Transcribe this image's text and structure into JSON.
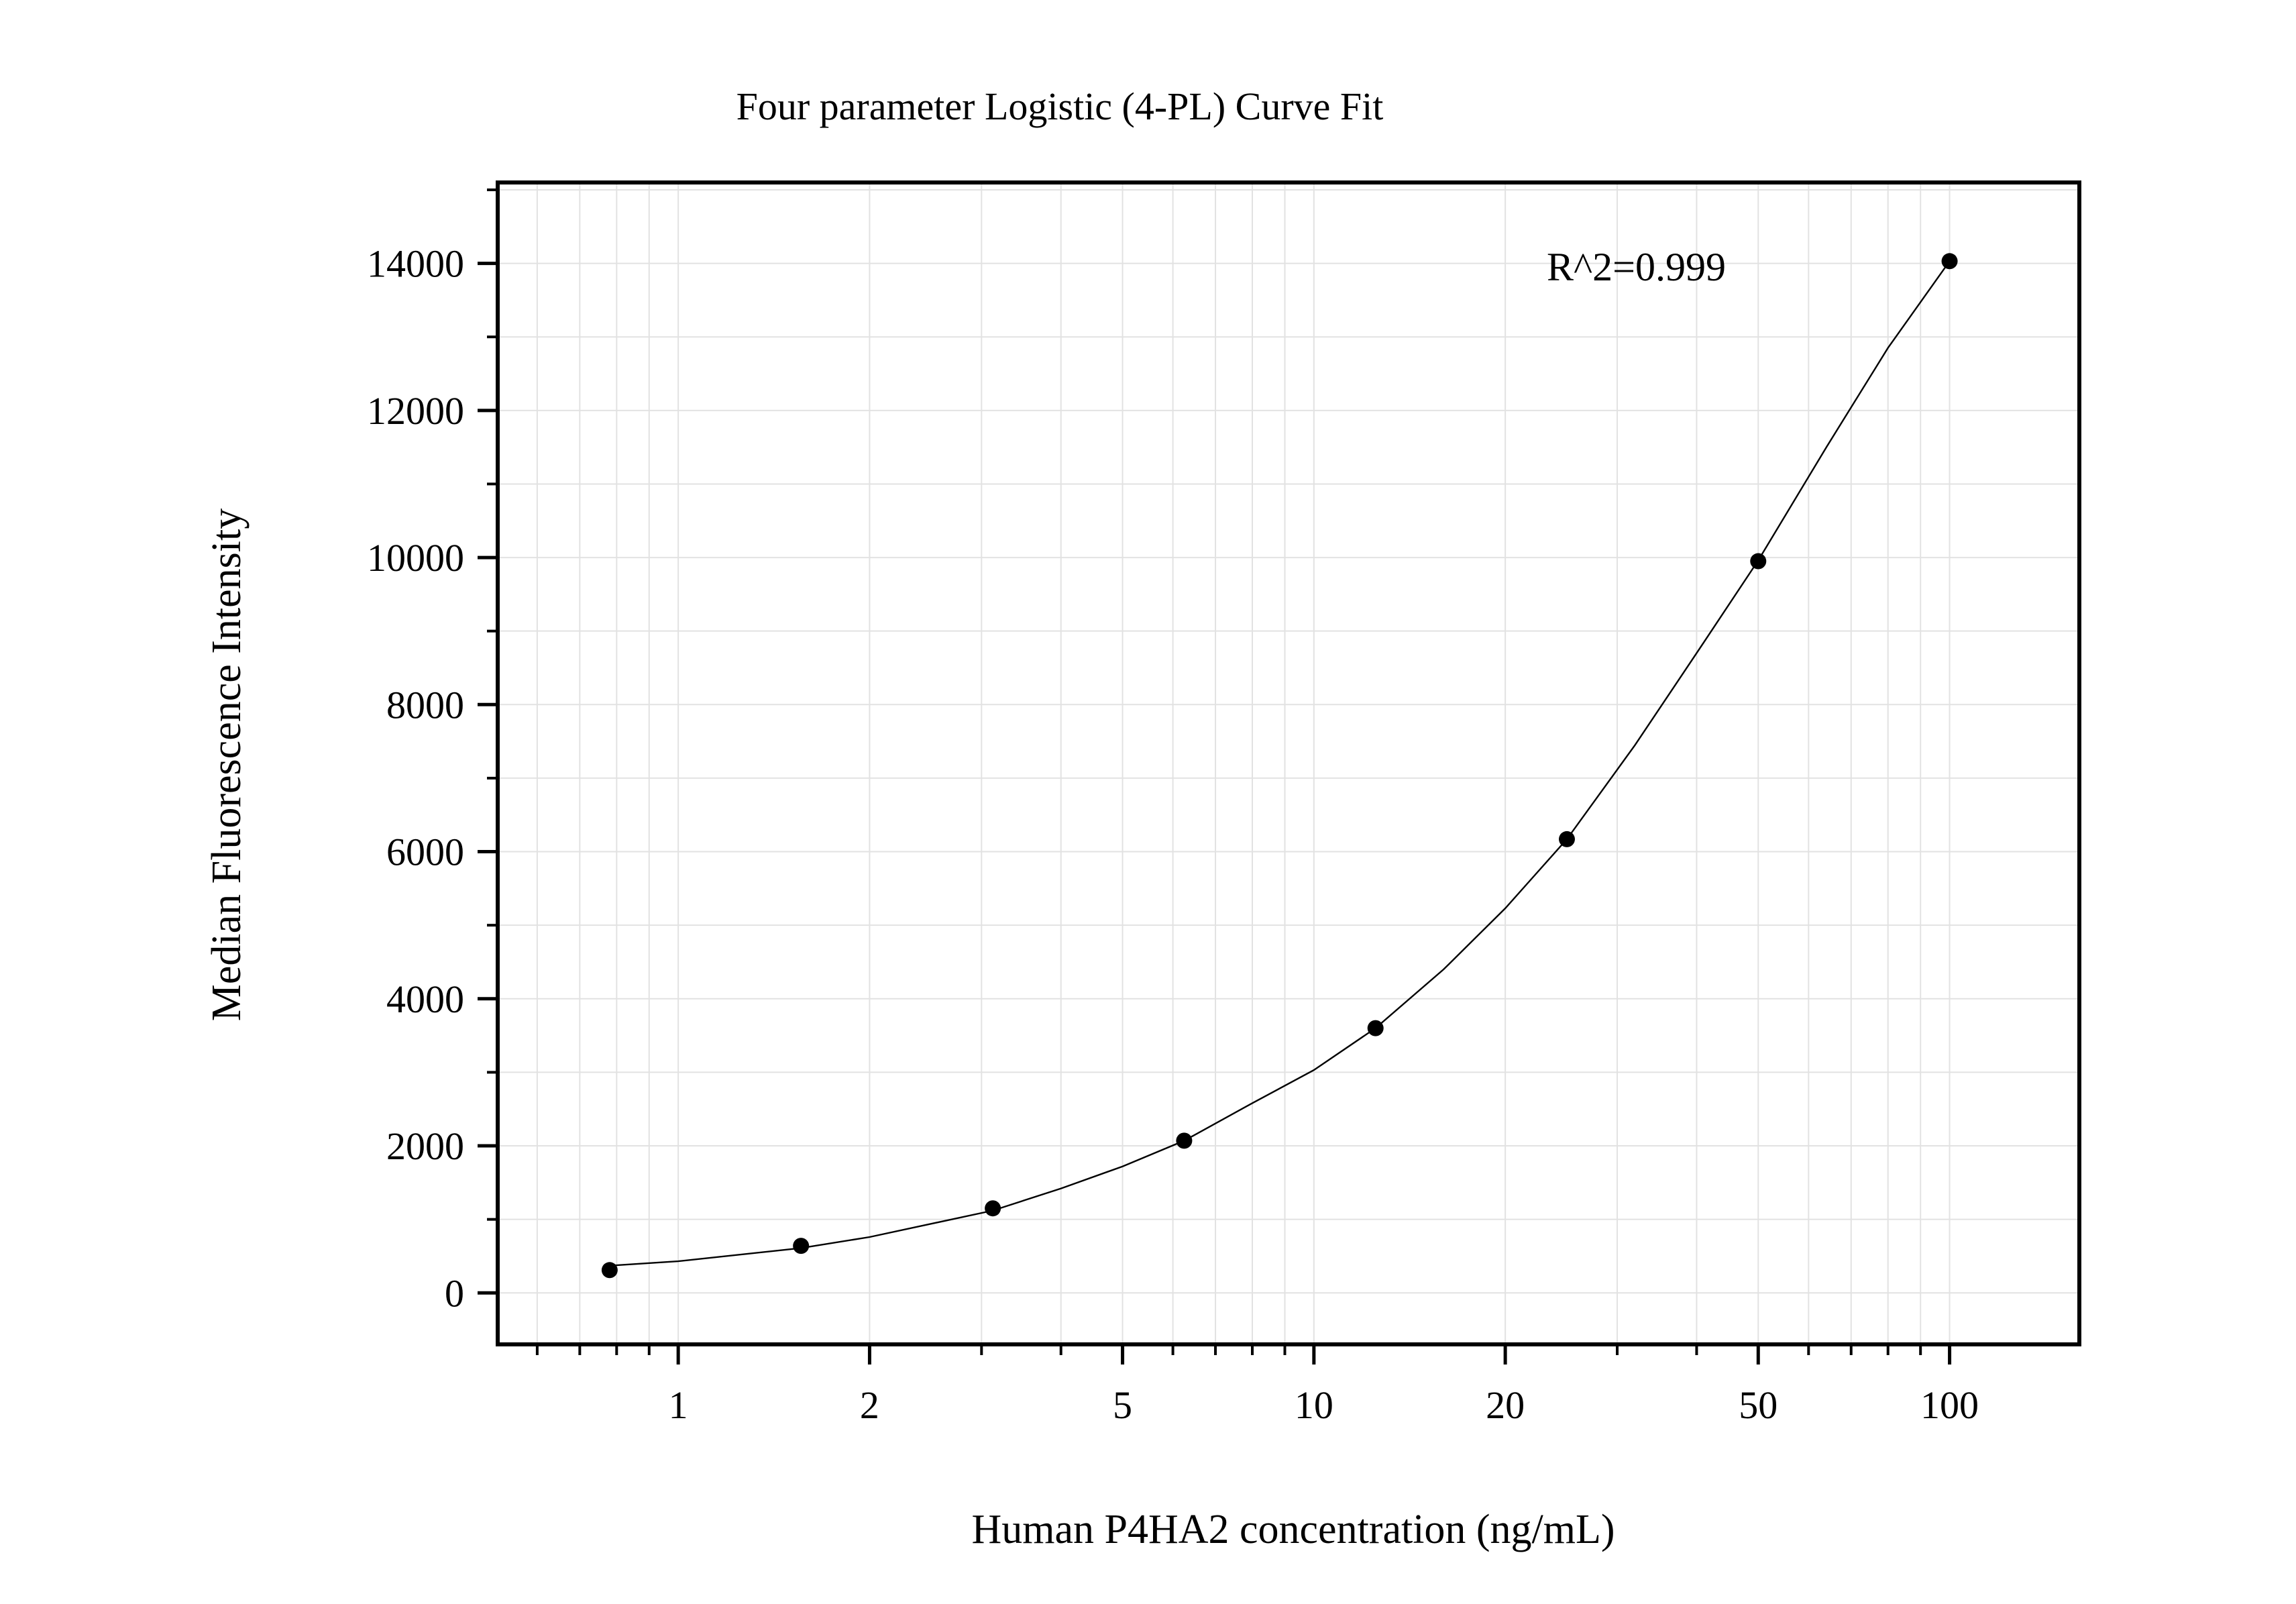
{
  "chart_data": {
    "type": "scatter",
    "title": "Four parameter Logistic (4-PL) Curve Fit",
    "xlabel": "Human P4HA2 concentration (ng/mL)",
    "ylabel": "Median Fluorescence Intensity",
    "x_scale": "log",
    "xlim": [
      0.52,
      160
    ],
    "ylim": [
      -700,
      15100
    ],
    "x_ticks": [
      1,
      2,
      5,
      10,
      20,
      50,
      100
    ],
    "x_tick_labels": [
      "1",
      "2",
      "5",
      "10",
      "20",
      "50",
      "100"
    ],
    "y_ticks": [
      0,
      2000,
      4000,
      6000,
      8000,
      10000,
      12000,
      14000
    ],
    "y_tick_labels": [
      "0",
      "2000",
      "4000",
      "6000",
      "8000",
      "10000",
      "12000",
      "14000"
    ],
    "grid": true,
    "annotation": "R^2=0.999",
    "series": [
      {
        "type": "scatter",
        "x": [
          0.78,
          1.56,
          3.125,
          6.25,
          12.5,
          25,
          50,
          100
        ],
        "y": [
          310,
          640,
          1150,
          2070,
          3600,
          6170,
          9950,
          14030
        ]
      }
    ],
    "fit_curve": {
      "type": "line",
      "model": "4-PL",
      "points": [
        [
          0.78,
          370
        ],
        [
          1.0,
          430
        ],
        [
          1.56,
          610
        ],
        [
          2.0,
          760
        ],
        [
          3.125,
          1120
        ],
        [
          4.0,
          1420
        ],
        [
          5.0,
          1720
        ],
        [
          6.25,
          2070
        ],
        [
          8.0,
          2580
        ],
        [
          10.0,
          3030
        ],
        [
          12.5,
          3600
        ],
        [
          16.0,
          4400
        ],
        [
          20.0,
          5230
        ],
        [
          25.0,
          6170
        ],
        [
          32.0,
          7450
        ],
        [
          40.0,
          8700
        ],
        [
          50.0,
          9960
        ],
        [
          64.0,
          11500
        ],
        [
          80.0,
          12850
        ],
        [
          100.0,
          14030
        ]
      ]
    }
  }
}
